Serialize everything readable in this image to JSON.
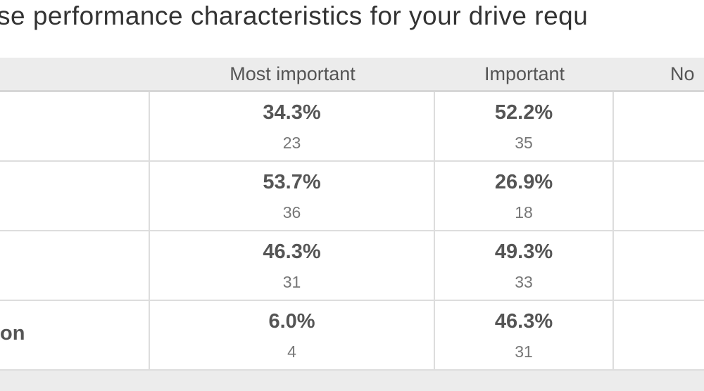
{
  "header": {
    "title": "se performance characteristics for your drive requ"
  },
  "table": {
    "columns": [
      "Most important",
      "Important",
      "No"
    ],
    "rows": [
      {
        "cells": [
          {
            "percent": "34.3%",
            "count": 23
          },
          {
            "percent": "52.2%",
            "count": 35
          }
        ]
      },
      {
        "cells": [
          {
            "percent": "53.7%",
            "count": 36
          },
          {
            "percent": "26.9%",
            "count": 18
          }
        ]
      },
      {
        "cells": [
          {
            "percent": "46.3%",
            "count": 31
          },
          {
            "percent": "49.3%",
            "count": 33
          }
        ]
      },
      {
        "label": "on",
        "cells": [
          {
            "percent": "6.0%",
            "count": 4
          },
          {
            "percent": "46.3%",
            "count": 31
          }
        ]
      }
    ]
  }
}
